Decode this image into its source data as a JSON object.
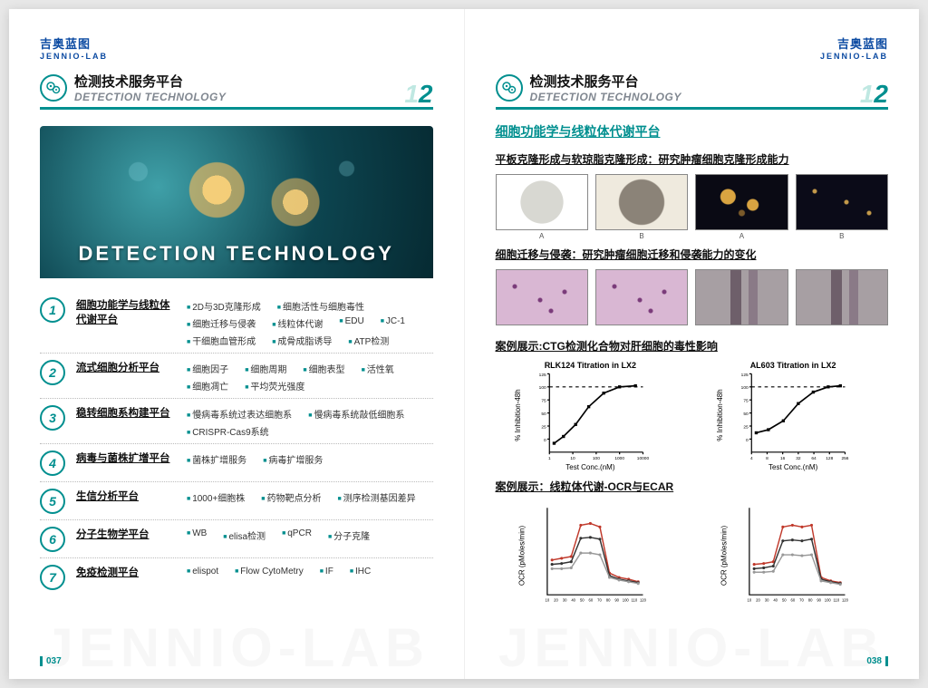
{
  "brand": {
    "cn": "吉奥蓝图",
    "en": "JENNIO-LAB"
  },
  "header": {
    "icon_glyph": "⊙⊙",
    "title_cn": "检测技术服务平台",
    "title_en": "DETECTION TECHNOLOGY",
    "page_no_1": "1",
    "page_no_2": "2"
  },
  "hero": {
    "label": "DETECTION TECHNOLOGY"
  },
  "colors": {
    "accent": "#008f8f",
    "accent_light": "#bfe8e2",
    "brand_blue": "#0b4aa2",
    "text": "#111111",
    "muted": "#808790"
  },
  "platforms": [
    {
      "num": "1",
      "name": "细胞功能学与线粒体代谢平台",
      "items": [
        "2D与3D克隆形成",
        "细胞活性与细胞毒性",
        "细胞迁移与侵袭",
        "线粒体代谢",
        "EDU",
        "JC-1",
        "干细胞血管形成",
        "成骨成脂诱导",
        "ATP检测"
      ]
    },
    {
      "num": "2",
      "name": "流式细胞分析平台",
      "items": [
        "细胞因子",
        "细胞周期",
        "细胞表型",
        "活性氧",
        "细胞凋亡",
        "平均荧光强度"
      ]
    },
    {
      "num": "3",
      "name": "稳转细胞系构建平台",
      "items": [
        "慢病毒系统过表达细胞系",
        "慢病毒系统敲低细胞系",
        "CRISPR-Cas9系统"
      ]
    },
    {
      "num": "4",
      "name": "病毒与菌株扩增平台",
      "items": [
        "菌株扩增服务",
        "病毒扩增服务"
      ]
    },
    {
      "num": "5",
      "name": "生信分析平台",
      "items": [
        "1000+细胞株",
        "药物靶点分析",
        "测序检测基因差异"
      ]
    },
    {
      "num": "6",
      "name": "分子生物学平台",
      "items": [
        "WB",
        "elisa检测",
        "qPCR",
        "分子克隆"
      ]
    },
    {
      "num": "7",
      "name": "免疫检测平台",
      "items": [
        "elispot",
        "Flow CytoMetry",
        "IF",
        "IHC"
      ]
    }
  ],
  "page_left_footer": "037",
  "page_right_footer": "038",
  "right": {
    "section_title": "细胞功能学与线粒体代谢平台",
    "subtitle1": "平板克隆形成与软琼脂克隆形成：研究肿瘤细胞克隆形成能力",
    "row1_caps": [
      "A",
      "B",
      "A",
      "B"
    ],
    "subtitle2": "细胞迁移与侵袭：研究肿瘤细胞迁移和侵袭能力的变化",
    "subtitle3": "案例展示:CTG检测化合物对肝细胞的毒性影响",
    "subtitle4": "案例展示：线粒体代谢-OCR与ECAR",
    "ctg_charts": [
      {
        "title": "RLK124 Titration in LX2",
        "xlabel": "Test Conc.(nM)",
        "ylabel": "% Inhibition-48h",
        "ylim": [
          -25,
          125
        ],
        "yticks": [
          0,
          25,
          50,
          75,
          100,
          125
        ],
        "xticks": [
          "1",
          "10",
          "100",
          "1000",
          "10000"
        ],
        "dash_y": 100,
        "points": [
          [
            5,
            -8
          ],
          [
            15,
            5
          ],
          [
            28,
            28
          ],
          [
            42,
            62
          ],
          [
            58,
            88
          ],
          [
            75,
            100
          ],
          [
            92,
            102
          ]
        ]
      },
      {
        "title": "AL603 Titration in LX2",
        "xlabel": "Test Conc.(nM)",
        "ylabel": "% Inhibition-48h",
        "ylim": [
          -25,
          125
        ],
        "yticks": [
          0,
          25,
          50,
          75,
          100,
          125
        ],
        "xticks": [
          "4",
          "8",
          "16",
          "32",
          "64",
          "128",
          "256"
        ],
        "dash_y": 100,
        "points": [
          [
            5,
            12
          ],
          [
            18,
            18
          ],
          [
            34,
            35
          ],
          [
            50,
            68
          ],
          [
            66,
            90
          ],
          [
            82,
            100
          ],
          [
            95,
            102
          ]
        ]
      }
    ],
    "ocr_charts": [
      {
        "ylabel": "OCR (pMoles/min)",
        "xticks": [
          "10",
          "20",
          "30",
          "40",
          "50",
          "60",
          "70",
          "80",
          "90",
          "100",
          "110",
          "120"
        ],
        "series": [
          {
            "color": "#c0392b",
            "points": [
              [
                5,
                40
              ],
              [
                15,
                42
              ],
              [
                25,
                44
              ],
              [
                35,
                80
              ],
              [
                45,
                82
              ],
              [
                55,
                78
              ],
              [
                65,
                25
              ],
              [
                75,
                20
              ],
              [
                85,
                18
              ],
              [
                95,
                15
              ]
            ]
          },
          {
            "color": "#333333",
            "points": [
              [
                5,
                35
              ],
              [
                15,
                36
              ],
              [
                25,
                38
              ],
              [
                35,
                65
              ],
              [
                45,
                66
              ],
              [
                55,
                64
              ],
              [
                65,
                22
              ],
              [
                75,
                18
              ],
              [
                85,
                16
              ],
              [
                95,
                14
              ]
            ]
          },
          {
            "color": "#999999",
            "points": [
              [
                5,
                30
              ],
              [
                15,
                30
              ],
              [
                25,
                31
              ],
              [
                35,
                48
              ],
              [
                45,
                48
              ],
              [
                55,
                46
              ],
              [
                65,
                20
              ],
              [
                75,
                17
              ],
              [
                85,
                15
              ],
              [
                95,
                13
              ]
            ]
          }
        ]
      },
      {
        "ylabel": "OCR (pMoles/min)",
        "xticks": [
          "10",
          "20",
          "30",
          "40",
          "50",
          "60",
          "70",
          "80",
          "90",
          "100",
          "110",
          "120"
        ],
        "series": [
          {
            "color": "#c0392b",
            "points": [
              [
                5,
                35
              ],
              [
                15,
                36
              ],
              [
                25,
                38
              ],
              [
                35,
                78
              ],
              [
                45,
                80
              ],
              [
                55,
                78
              ],
              [
                65,
                80
              ],
              [
                75,
                20
              ],
              [
                85,
                16
              ],
              [
                95,
                14
              ]
            ]
          },
          {
            "color": "#333333",
            "points": [
              [
                5,
                30
              ],
              [
                15,
                31
              ],
              [
                25,
                33
              ],
              [
                35,
                62
              ],
              [
                45,
                63
              ],
              [
                55,
                62
              ],
              [
                65,
                64
              ],
              [
                75,
                18
              ],
              [
                85,
                15
              ],
              [
                95,
                13
              ]
            ]
          },
          {
            "color": "#999999",
            "points": [
              [
                5,
                26
              ],
              [
                15,
                26
              ],
              [
                25,
                27
              ],
              [
                35,
                46
              ],
              [
                45,
                46
              ],
              [
                55,
                45
              ],
              [
                65,
                46
              ],
              [
                75,
                16
              ],
              [
                85,
                14
              ],
              [
                95,
                12
              ]
            ]
          }
        ]
      }
    ]
  },
  "watermark": "JENNIO-LAB"
}
